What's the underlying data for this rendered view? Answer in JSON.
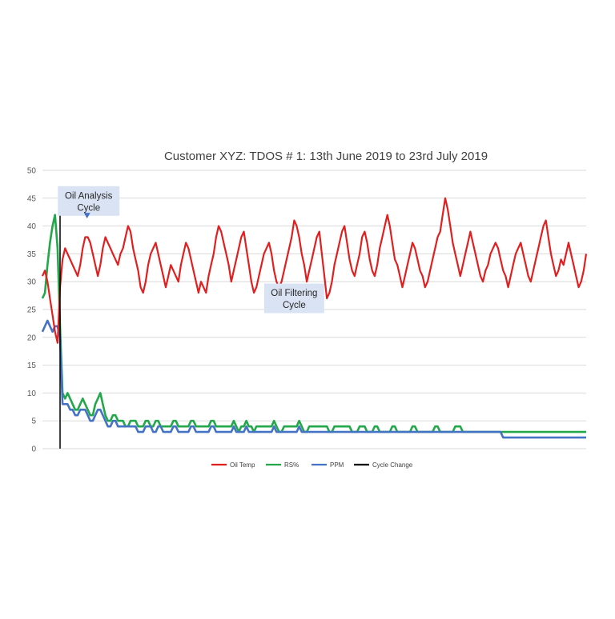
{
  "chart_data": {
    "type": "line",
    "title": "Customer XYZ: TDOS # 1: 13th June 2019 to 23rd July 2019",
    "xlabel": "",
    "ylabel": "",
    "ylim": [
      0,
      50
    ],
    "yticks": [
      "0",
      "5",
      "10",
      "15",
      "20",
      "25",
      "30",
      "35",
      "40",
      "45",
      "50"
    ],
    "grid": true,
    "legend_position": "bottom",
    "x_index_range": [
      0,
      216
    ],
    "cycle_change_at": 7,
    "series": [
      {
        "name": "Oil Temp",
        "color": "#e02020",
        "values": [
          31,
          32,
          30,
          27,
          24,
          21,
          19,
          29,
          34,
          36,
          35,
          34,
          33,
          32,
          31,
          33,
          36,
          38,
          38,
          37,
          35,
          33,
          31,
          33,
          36,
          38,
          37,
          36,
          35,
          34,
          33,
          35,
          36,
          38,
          40,
          39,
          36,
          34,
          32,
          29,
          28,
          30,
          33,
          35,
          36,
          37,
          35,
          33,
          31,
          29,
          31,
          33,
          32,
          31,
          30,
          33,
          35,
          37,
          36,
          34,
          32,
          30,
          28,
          30,
          29,
          28,
          31,
          33,
          35,
          38,
          40,
          39,
          37,
          35,
          33,
          30,
          32,
          34,
          36,
          38,
          39,
          36,
          33,
          30,
          28,
          29,
          31,
          33,
          35,
          36,
          37,
          35,
          32,
          30,
          29,
          30,
          32,
          34,
          36,
          38,
          41,
          40,
          38,
          35,
          33,
          30,
          32,
          34,
          36,
          38,
          39,
          35,
          31,
          27,
          28,
          30,
          33,
          35,
          37,
          39,
          40,
          37,
          34,
          32,
          31,
          33,
          35,
          38,
          39,
          37,
          34,
          32,
          31,
          33,
          36,
          38,
          40,
          42,
          40,
          37,
          34,
          33,
          31,
          29,
          31,
          33,
          35,
          37,
          36,
          34,
          32,
          31,
          29,
          30,
          32,
          34,
          36,
          38,
          39,
          42,
          45,
          43,
          40,
          37,
          35,
          33,
          31,
          33,
          35,
          37,
          39,
          37,
          35,
          33,
          31,
          30,
          32,
          33,
          35,
          36,
          37,
          36,
          34,
          32,
          31,
          29,
          31,
          33,
          35,
          36,
          37,
          35,
          33,
          31,
          30,
          32,
          34,
          36,
          38,
          40,
          41,
          38,
          35,
          33,
          31,
          32,
          34,
          33,
          35,
          37,
          35,
          33,
          31,
          29,
          30,
          32,
          35
        ]
      },
      {
        "name": "RS%",
        "color": "#22a84a",
        "values": [
          27,
          28,
          33,
          37,
          40,
          42,
          36,
          22,
          10,
          9,
          10,
          9,
          8,
          7,
          7,
          8,
          9,
          8,
          7,
          6,
          6,
          8,
          9,
          10,
          8,
          6,
          5,
          5,
          6,
          6,
          5,
          5,
          5,
          4,
          4,
          5,
          5,
          5,
          4,
          4,
          4,
          5,
          5,
          4,
          4,
          5,
          5,
          4,
          4,
          4,
          4,
          4,
          5,
          5,
          4,
          4,
          4,
          4,
          4,
          5,
          5,
          4,
          4,
          4,
          4,
          4,
          4,
          5,
          5,
          4,
          4,
          4,
          4,
          4,
          4,
          4,
          5,
          4,
          3,
          4,
          4,
          5,
          4,
          4,
          3,
          4,
          4,
          4,
          4,
          4,
          4,
          4,
          5,
          4,
          3,
          3,
          4,
          4,
          4,
          4,
          4,
          4,
          5,
          4,
          3,
          3,
          4,
          4,
          4,
          4,
          4,
          4,
          4,
          4,
          3,
          3,
          4,
          4,
          4,
          4,
          4,
          4,
          4,
          3,
          3,
          3,
          4,
          4,
          4,
          3,
          3,
          3,
          4,
          4,
          3,
          3,
          3,
          3,
          3,
          4,
          4,
          3,
          3,
          3,
          3,
          3,
          3,
          4,
          4,
          3,
          3,
          3,
          3,
          3,
          3,
          3,
          4,
          4,
          3,
          3,
          3,
          3,
          3,
          3,
          4,
          4,
          4,
          3,
          3,
          3,
          3,
          3,
          3,
          3,
          3,
          3,
          3,
          3,
          3,
          3,
          3,
          3,
          3,
          3,
          3,
          3,
          3,
          3,
          3,
          3,
          3,
          3,
          3,
          3,
          3,
          3,
          3,
          3,
          3,
          3,
          3,
          3,
          3,
          3,
          3,
          3,
          3,
          3,
          3,
          3,
          3,
          3,
          3,
          3,
          3,
          3,
          3
        ]
      },
      {
        "name": "PPM",
        "color": "#4472c4",
        "values": [
          21,
          22,
          23,
          22,
          21,
          22,
          22,
          20,
          8,
          8,
          8,
          7,
          7,
          6,
          6,
          7,
          7,
          7,
          6,
          5,
          5,
          6,
          7,
          7,
          6,
          5,
          4,
          4,
          5,
          5,
          4,
          4,
          4,
          4,
          4,
          4,
          4,
          4,
          3,
          3,
          3,
          4,
          4,
          4,
          3,
          3,
          4,
          4,
          3,
          3,
          3,
          3,
          4,
          4,
          3,
          3,
          3,
          3,
          3,
          4,
          4,
          3,
          3,
          3,
          3,
          3,
          3,
          4,
          4,
          3,
          3,
          3,
          3,
          3,
          3,
          3,
          4,
          3,
          3,
          3,
          3,
          4,
          3,
          3,
          3,
          3,
          3,
          3,
          3,
          3,
          3,
          3,
          4,
          3,
          3,
          3,
          3,
          3,
          3,
          3,
          3,
          3,
          4,
          3,
          3,
          3,
          3,
          3,
          3,
          3,
          3,
          3,
          3,
          3,
          3,
          3,
          3,
          3,
          3,
          3,
          3,
          3,
          3,
          3,
          3,
          3,
          3,
          3,
          3,
          3,
          3,
          3,
          3,
          3,
          3,
          3,
          3,
          3,
          3,
          3,
          3,
          3,
          3,
          3,
          3,
          3,
          3,
          3,
          3,
          3,
          3,
          3,
          3,
          3,
          3,
          3,
          3,
          3,
          3,
          3,
          3,
          3,
          3,
          3,
          3,
          3,
          3,
          3,
          3,
          3,
          3,
          3,
          3,
          3,
          3,
          3,
          3,
          3,
          3,
          3,
          3,
          3,
          3,
          2,
          2,
          2,
          2,
          2,
          2,
          2,
          2,
          2,
          2,
          2,
          2,
          2,
          2,
          2,
          2,
          2,
          2,
          2,
          2,
          2,
          2,
          2,
          2,
          2,
          2,
          2,
          2,
          2,
          2,
          2,
          2,
          2,
          2
        ]
      },
      {
        "name": "Cycle Change",
        "color": "#000000",
        "values": []
      }
    ],
    "annotations": [
      {
        "lines": [
          "Oil Analysis",
          "Cycle"
        ],
        "anchor_x": 5,
        "anchor_y": 44.5,
        "arrow_to_y": 41.5
      },
      {
        "lines": [
          "Oil Filtering",
          "Cycle"
        ],
        "anchor_x": 100,
        "anchor_y": 27.0
      }
    ]
  }
}
